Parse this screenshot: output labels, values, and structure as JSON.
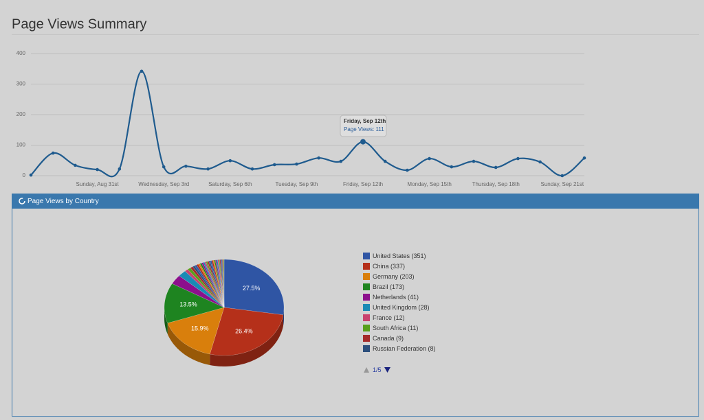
{
  "chart_data": [
    {
      "type": "line",
      "title": "Page Views Summary",
      "categories": [
        null,
        null,
        null,
        "Sunday, Aug 31st",
        null,
        null,
        "Wednesday, Sep 3rd",
        null,
        null,
        "Saturday, Sep 6th",
        null,
        null,
        "Tuesday, Sep 9th",
        null,
        null,
        "Friday, Sep 12th",
        null,
        null,
        "Monday, Sep 15th",
        null,
        null,
        "Thursday, Sep 18th",
        null,
        null,
        "Sunday, Sep 21st",
        null
      ],
      "values": [
        2,
        74,
        34,
        20,
        22,
        342,
        29,
        31,
        22,
        49,
        22,
        36,
        38,
        58,
        47,
        111,
        47,
        18,
        56,
        29,
        47,
        27,
        56,
        45,
        0,
        58
      ],
      "color": "#1f5b8e",
      "ylim": [
        0,
        400
      ],
      "yticks": [
        0,
        100,
        200,
        300,
        400
      ],
      "grid": true,
      "tooltip": "Page Views: 111"
    },
    {
      "type": "pie",
      "title": "Page Views by Country",
      "categories": [
        "United States (351)",
        "China (337)",
        "Germany (203)",
        "Brazil (173)",
        "Netherlands (41)",
        "United Kingdom (28)",
        "France (12)",
        "South Africa (11)",
        "Canada (9)",
        "Russian Federation (8)",
        null,
        null,
        null,
        null,
        null,
        null,
        null,
        null,
        null,
        null,
        null,
        null,
        null,
        null,
        null,
        null,
        null,
        null,
        null,
        null,
        null,
        null,
        null,
        null
      ],
      "values": [
        351,
        337,
        203,
        173,
        41,
        28,
        12,
        11,
        9,
        8,
        7,
        7,
        6,
        6,
        6,
        5,
        5,
        5,
        5,
        5,
        5,
        5,
        4,
        4,
        4,
        4,
        4,
        3,
        3,
        3,
        3,
        2,
        2,
        2
      ],
      "value_labels": [
        "27.5%",
        "26.4%",
        "15.9%",
        "13.5%",
        null,
        null,
        null,
        null,
        null,
        null,
        null,
        null,
        null,
        null,
        null,
        null,
        null,
        null,
        null,
        null,
        null,
        null,
        null,
        null,
        null,
        null,
        null,
        null,
        null,
        null,
        null,
        null,
        null,
        null
      ],
      "colors": [
        "#2f55a4",
        "#b5301a",
        "#d97f0c",
        "#1e8420",
        "#8c0f8c",
        "#1a8ab5",
        "#c9426e",
        "#58a01c",
        "#a52a2a",
        "#2c4f7c"
      ],
      "pager": "1/5"
    }
  ]
}
